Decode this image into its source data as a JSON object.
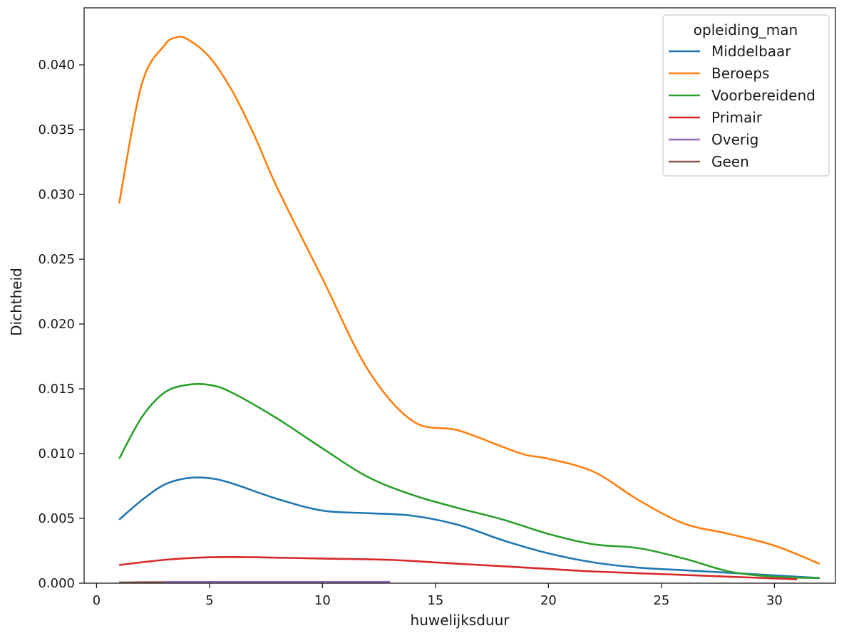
{
  "chart_data": {
    "type": "line",
    "title": "",
    "xlabel": "huwelijksduur",
    "ylabel": "Dichtheid",
    "xlim": [
      -0.55,
      32.7
    ],
    "ylim": [
      0,
      0.0444
    ],
    "xticks": [
      0,
      5,
      10,
      15,
      20,
      25,
      30
    ],
    "yticks": [
      0.0,
      0.005,
      0.01,
      0.015,
      0.02,
      0.025,
      0.03,
      0.035,
      0.04
    ],
    "xtick_labels": [
      "0",
      "5",
      "10",
      "15",
      "20",
      "25",
      "30"
    ],
    "ytick_labels": [
      "0.000",
      "0.005",
      "0.010",
      "0.015",
      "0.020",
      "0.025",
      "0.030",
      "0.035",
      "0.040"
    ],
    "grid": false,
    "legend": {
      "title": "opleiding_man",
      "placement": "top-right"
    },
    "series": [
      {
        "name": "Middelbaar",
        "color": "#1f77b4",
        "x": [
          1,
          2,
          3,
          4,
          5,
          6,
          8,
          10,
          12,
          14,
          16,
          18,
          20,
          22,
          24,
          26,
          28,
          30,
          32
        ],
        "y": [
          0.0049,
          0.0064,
          0.0076,
          0.0081,
          0.0081,
          0.0077,
          0.0065,
          0.0056,
          0.0054,
          0.0052,
          0.0045,
          0.0033,
          0.0023,
          0.0016,
          0.0012,
          0.001,
          0.0008,
          0.0006,
          0.0004
        ]
      },
      {
        "name": "Beroeps",
        "color": "#ff7f0e",
        "x": [
          1,
          2,
          3,
          3.5,
          4,
          5,
          6,
          7,
          8,
          10,
          12,
          14,
          16,
          18,
          19,
          20,
          22,
          24,
          26,
          28,
          30,
          32
        ],
        "y": [
          0.0293,
          0.0385,
          0.0415,
          0.0421,
          0.042,
          0.0406,
          0.038,
          0.0345,
          0.0305,
          0.0235,
          0.0165,
          0.0125,
          0.0118,
          0.0105,
          0.0099,
          0.0096,
          0.0086,
          0.0064,
          0.0046,
          0.0038,
          0.0029,
          0.0015
        ]
      },
      {
        "name": "Voorbereidend",
        "color": "#2ca02c",
        "x": [
          1,
          2,
          3,
          4,
          5,
          6,
          8,
          10,
          12,
          14,
          16,
          18,
          20,
          22,
          24,
          26,
          28,
          30,
          32
        ],
        "y": [
          0.0096,
          0.0128,
          0.0147,
          0.0153,
          0.0153,
          0.0147,
          0.0127,
          0.0104,
          0.0082,
          0.0068,
          0.0058,
          0.0049,
          0.0038,
          0.003,
          0.0027,
          0.0019,
          0.0009,
          0.0005,
          0.0004
        ]
      },
      {
        "name": "Primair",
        "color": "#d62728",
        "x": [
          1,
          3,
          5,
          7,
          10,
          13,
          15,
          18,
          20,
          22,
          25,
          28,
          31
        ],
        "y": [
          0.0014,
          0.0018,
          0.002,
          0.002,
          0.0019,
          0.0018,
          0.0016,
          0.0013,
          0.0011,
          0.0009,
          0.0007,
          0.0005,
          0.0003
        ]
      },
      {
        "name": "Overig",
        "color": "#9467bd",
        "x": [
          3,
          5,
          7,
          9,
          11,
          13
        ],
        "y": [
          0.0001,
          0.0001,
          0.0001,
          0.0001,
          0.0001,
          0.0001
        ]
      },
      {
        "name": "Geen",
        "color": "#8c564b",
        "x": [
          1,
          1.5,
          2,
          3
        ],
        "y": [
          5e-05,
          6e-05,
          7e-05,
          8e-05
        ]
      }
    ]
  }
}
